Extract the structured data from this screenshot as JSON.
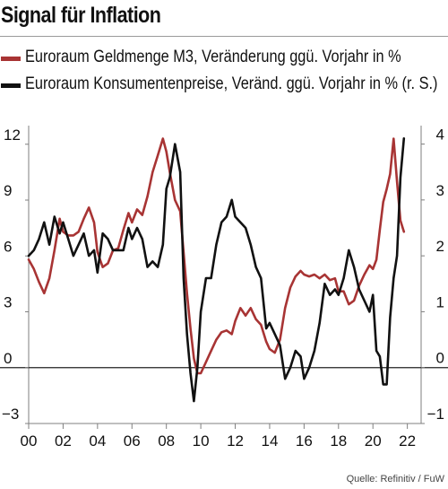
{
  "title": "Signal für Inflation",
  "source": "Quelle: Refinitiv / FuW",
  "colors": {
    "m3": "#a83434",
    "cpi": "#111111",
    "axis": "#7f7f7f",
    "zero": "#222222"
  },
  "chart_data": {
    "type": "line",
    "title": "Signal für Inflation",
    "grid": false,
    "legend_position": "top-left",
    "x_ticks": [
      "00",
      "02",
      "04",
      "06",
      "08",
      "10",
      "12",
      "14",
      "16",
      "18",
      "20",
      "22"
    ],
    "x_range": [
      2000,
      2022.8
    ],
    "y_left": {
      "ticks": [
        "12",
        "9",
        "6",
        "3",
        "0",
        "−3"
      ],
      "range": [
        -3,
        13
      ]
    },
    "y_right": {
      "ticks": [
        "4",
        "3",
        "2",
        "1",
        "0",
        "−1"
      ],
      "range": [
        -1,
        4.33
      ]
    },
    "series": [
      {
        "name": "Euroraum Geldmenge M3, Veränderung ggü. Vorjahr in %",
        "axis": "left",
        "x": [
          2000.0,
          2000.3,
          2000.6,
          2000.9,
          2001.2,
          2001.5,
          2001.8,
          2002.0,
          2002.3,
          2002.6,
          2002.9,
          2003.2,
          2003.5,
          2003.8,
          2004.0,
          2004.3,
          2004.6,
          2004.9,
          2005.2,
          2005.5,
          2005.8,
          2006.0,
          2006.3,
          2006.6,
          2006.9,
          2007.2,
          2007.5,
          2007.8,
          2008.0,
          2008.2,
          2008.5,
          2008.8,
          2009.0,
          2009.2,
          2009.4,
          2009.6,
          2009.8,
          2010.0,
          2010.3,
          2010.6,
          2010.9,
          2011.2,
          2011.5,
          2011.8,
          2012.0,
          2012.3,
          2012.6,
          2012.9,
          2013.2,
          2013.5,
          2013.8,
          2014.0,
          2014.3,
          2014.6,
          2014.9,
          2015.2,
          2015.5,
          2015.8,
          2016.0,
          2016.3,
          2016.6,
          2016.9,
          2017.2,
          2017.5,
          2017.8,
          2018.0,
          2018.3,
          2018.6,
          2018.9,
          2019.2,
          2019.5,
          2019.8,
          2020.0,
          2020.2,
          2020.4,
          2020.6,
          2020.8,
          2021.0,
          2021.2,
          2021.4,
          2021.6,
          2021.8
        ],
        "values": [
          5.8,
          5.3,
          4.6,
          4.0,
          4.8,
          6.3,
          8.0,
          7.3,
          7.1,
          7.1,
          7.3,
          8.0,
          8.6,
          7.8,
          6.2,
          5.4,
          5.6,
          6.3,
          6.4,
          7.4,
          8.3,
          7.8,
          8.5,
          8.2,
          9.2,
          10.5,
          11.4,
          12.3,
          11.6,
          10.5,
          9.0,
          8.4,
          6.2,
          4.0,
          2.1,
          0.5,
          -0.3,
          -0.3,
          0.3,
          0.9,
          1.5,
          1.9,
          2.0,
          1.8,
          2.5,
          3.2,
          2.8,
          3.2,
          2.6,
          2.3,
          1.4,
          1.0,
          0.8,
          1.5,
          3.2,
          4.3,
          4.9,
          5.2,
          5.0,
          4.9,
          5.0,
          4.8,
          5.0,
          4.7,
          4.8,
          4.1,
          4.1,
          3.4,
          3.6,
          4.4,
          5.0,
          5.5,
          5.3,
          5.8,
          7.4,
          8.9,
          9.6,
          10.4,
          12.3,
          10.0,
          7.9,
          7.3
        ]
      },
      {
        "name": "Euroraum Konsumentenpreise, Veränd. ggü. Vorjahr in % (r. S.)",
        "axis": "right",
        "x": [
          2000.0,
          2000.3,
          2000.6,
          2000.9,
          2001.2,
          2001.5,
          2001.8,
          2002.0,
          2002.3,
          2002.6,
          2002.9,
          2003.2,
          2003.5,
          2003.8,
          2004.0,
          2004.3,
          2004.6,
          2004.9,
          2005.2,
          2005.5,
          2005.8,
          2006.0,
          2006.3,
          2006.6,
          2006.9,
          2007.2,
          2007.5,
          2007.8,
          2008.0,
          2008.2,
          2008.5,
          2008.8,
          2009.0,
          2009.2,
          2009.4,
          2009.6,
          2009.8,
          2010.0,
          2010.3,
          2010.6,
          2010.9,
          2011.2,
          2011.5,
          2011.8,
          2012.0,
          2012.3,
          2012.6,
          2012.9,
          2013.2,
          2013.5,
          2013.8,
          2014.0,
          2014.3,
          2014.6,
          2014.9,
          2015.2,
          2015.5,
          2015.8,
          2016.0,
          2016.3,
          2016.6,
          2016.9,
          2017.2,
          2017.5,
          2017.8,
          2018.0,
          2018.3,
          2018.6,
          2018.9,
          2019.2,
          2019.5,
          2019.8,
          2020.0,
          2020.2,
          2020.4,
          2020.6,
          2020.8,
          2021.0,
          2021.2,
          2021.4,
          2021.6,
          2021.8
        ],
        "values": [
          2.0,
          2.1,
          2.3,
          2.6,
          2.2,
          2.7,
          2.4,
          2.6,
          2.3,
          2.0,
          2.2,
          2.4,
          2.0,
          2.1,
          1.7,
          2.4,
          2.3,
          2.1,
          2.1,
          2.1,
          2.5,
          2.3,
          2.5,
          2.3,
          1.8,
          1.9,
          1.8,
          2.2,
          3.2,
          3.4,
          4.0,
          3.5,
          1.6,
          0.6,
          -0.1,
          -0.6,
          0.0,
          1.0,
          1.6,
          1.6,
          2.2,
          2.6,
          2.7,
          3.0,
          2.7,
          2.6,
          2.5,
          2.2,
          1.8,
          1.6,
          0.7,
          0.8,
          0.6,
          0.4,
          -0.2,
          0.0,
          0.3,
          0.2,
          -0.2,
          0.0,
          0.3,
          0.8,
          1.5,
          1.3,
          1.4,
          1.3,
          1.6,
          2.1,
          1.8,
          1.4,
          1.2,
          1.0,
          1.3,
          0.3,
          0.2,
          -0.3,
          -0.3,
          0.9,
          1.6,
          2.0,
          3.4,
          4.1
        ]
      }
    ]
  }
}
